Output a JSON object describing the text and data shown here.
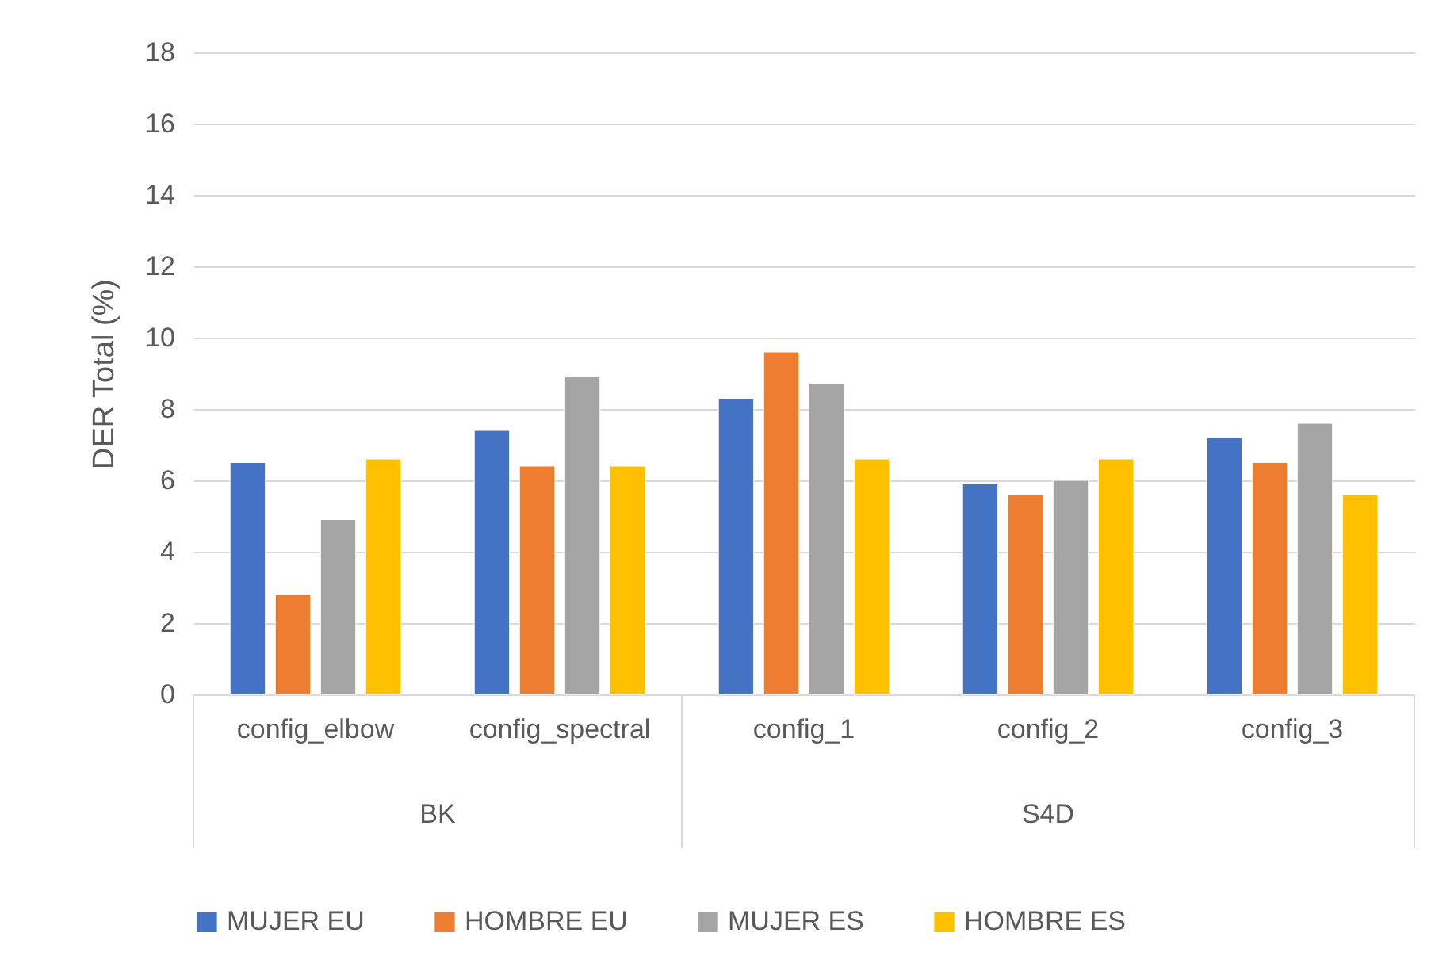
{
  "chart_data": {
    "type": "bar",
    "ylabel": "DER Total (%)",
    "categories": [
      "config_elbow",
      "config_spectral",
      "config_1",
      "config_2",
      "config_3"
    ],
    "series": [
      {
        "name": "MUJER EU",
        "color": "#4472c4",
        "values": [
          6.5,
          7.4,
          8.3,
          5.9,
          7.2
        ]
      },
      {
        "name": "HOMBRE EU",
        "color": "#ed7d31",
        "values": [
          2.8,
          6.4,
          9.6,
          5.6,
          6.5
        ]
      },
      {
        "name": "MUJER ES",
        "color": "#a5a5a5",
        "values": [
          4.9,
          8.9,
          8.7,
          6.0,
          7.6
        ]
      },
      {
        "name": "HOMBRE ES",
        "color": "#ffc000",
        "values": [
          6.6,
          6.4,
          6.6,
          6.6,
          5.6
        ]
      }
    ],
    "annotations": [
      "BK",
      "S4D"
    ],
    "ylim": [
      0,
      18
    ],
    "yticks": [
      0,
      2,
      4,
      6,
      8,
      10,
      12,
      14,
      16,
      18
    ],
    "grid": "y",
    "legend": "bottom"
  }
}
